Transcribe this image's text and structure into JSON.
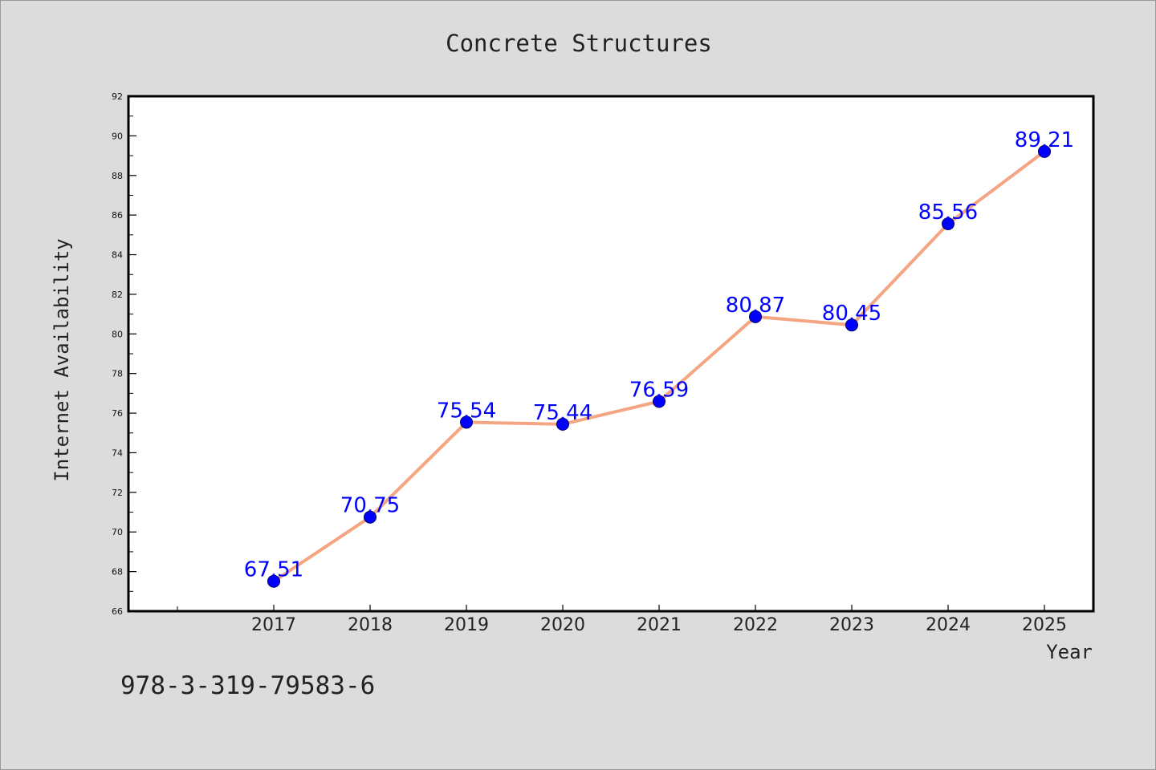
{
  "chart_data": {
    "type": "line",
    "title": "Concrete Structures",
    "xlabel": "Year",
    "ylabel": "Internet Availability",
    "x": [
      "2017",
      "2018",
      "2019",
      "2020",
      "2021",
      "2022",
      "2023",
      "2024",
      "2025"
    ],
    "series": [
      {
        "values": [
          67.51,
          70.75,
          75.54,
          75.44,
          76.59,
          80.87,
          80.45,
          85.56,
          89.21
        ],
        "data_labels": [
          "67.51",
          "70.75",
          "75.54",
          "75.44",
          "76.59",
          "80.87",
          "80.45",
          "85.56",
          "89.21"
        ]
      }
    ],
    "ylim": [
      66,
      92
    ],
    "y_ticks": [
      "66",
      "68",
      "70",
      "72",
      "74",
      "76",
      "78",
      "80",
      "82",
      "84",
      "86",
      "88",
      "90",
      "92"
    ],
    "grid": false,
    "legend": "none",
    "annotation": "978-3-319-79583-6",
    "colors": {
      "background": "#dcdcdc",
      "plot_background": "#ffffff",
      "line": "#f4a582",
      "marker": "#0000ff",
      "data_label": "#0000ff",
      "text": "#222222"
    }
  }
}
